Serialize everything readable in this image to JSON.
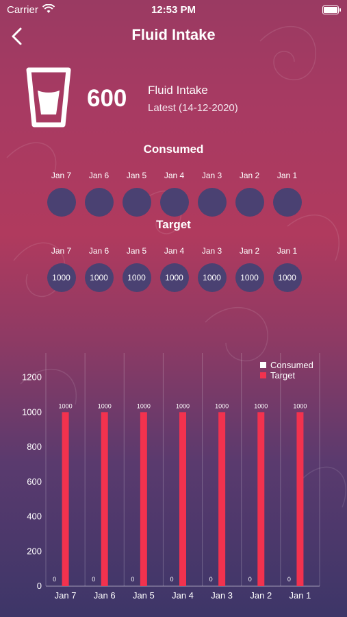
{
  "status_bar": {
    "carrier": "Carrier",
    "time": "12:53 PM"
  },
  "header": {
    "title": "Fluid Intake"
  },
  "summary": {
    "value": "600",
    "label": "Fluid Intake",
    "latest": "Latest (14-12-2020)"
  },
  "consumed": {
    "title": "Consumed",
    "days": [
      {
        "label": "Jan 7",
        "value": ""
      },
      {
        "label": "Jan 6",
        "value": ""
      },
      {
        "label": "Jan 5",
        "value": ""
      },
      {
        "label": "Jan 4",
        "value": ""
      },
      {
        "label": "Jan 3",
        "value": ""
      },
      {
        "label": "Jan 2",
        "value": ""
      },
      {
        "label": "Jan 1",
        "value": ""
      }
    ]
  },
  "target": {
    "title": "Target",
    "days": [
      {
        "label": "Jan 7",
        "value": "1000"
      },
      {
        "label": "Jan 6",
        "value": "1000"
      },
      {
        "label": "Jan 5",
        "value": "1000"
      },
      {
        "label": "Jan 4",
        "value": "1000"
      },
      {
        "label": "Jan 3",
        "value": "1000"
      },
      {
        "label": "Jan 2",
        "value": "1000"
      },
      {
        "label": "Jan 1",
        "value": "1000"
      }
    ]
  },
  "colors": {
    "consumed": "#ffffff",
    "target": "#f2324e",
    "circle": "#4a4172"
  },
  "chart_data": {
    "type": "bar",
    "categories": [
      "Jan 7",
      "Jan 6",
      "Jan 5",
      "Jan 4",
      "Jan 3",
      "Jan 2",
      "Jan 1"
    ],
    "series": [
      {
        "name": "Consumed",
        "values": [
          0,
          0,
          0,
          0,
          0,
          0,
          0
        ],
        "color": "#ffffff"
      },
      {
        "name": "Target",
        "values": [
          1000,
          1000,
          1000,
          1000,
          1000,
          1000,
          1000
        ],
        "color": "#f2324e"
      }
    ],
    "yticks": [
      0,
      200,
      400,
      600,
      800,
      1000,
      1200
    ],
    "ylim": [
      0,
      1340
    ],
    "legend": "top-right",
    "grid": "vertical"
  }
}
